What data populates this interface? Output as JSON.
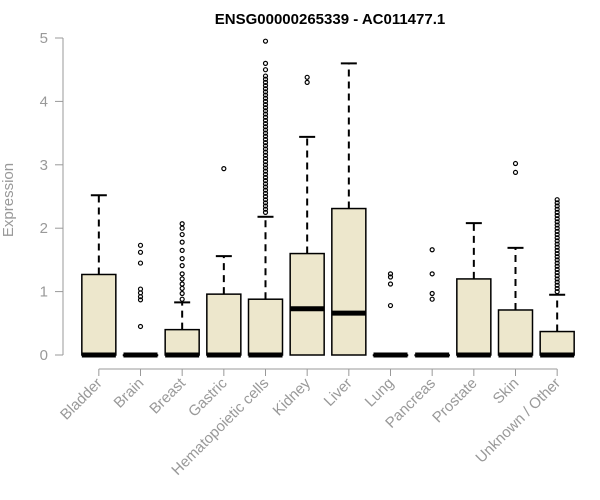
{
  "chart_data": {
    "type": "boxplot",
    "title": "ENSG00000265339 - AC011477.1",
    "ylabel": "Expression",
    "ylim": [
      0,
      5
    ],
    "yticks": [
      0,
      1,
      2,
      3,
      4,
      5
    ],
    "box_color": "#ede7cc",
    "categories": [
      "Bladder",
      "Brain",
      "Breast",
      "Gastric",
      "Hematopoietic cells",
      "Kidney",
      "Liver",
      "Lung",
      "Pancreas",
      "Prostate",
      "Skin",
      "Unknown / Other"
    ],
    "boxes": [
      {
        "q1": 0,
        "median": 0,
        "q3": 1.27,
        "whisker_low": 0,
        "whisker_high": 2.52,
        "outliers": []
      },
      {
        "q1": 0,
        "median": 0,
        "q3": 0,
        "whisker_low": 0,
        "whisker_high": 0,
        "outliers": [
          0.45,
          0.87,
          0.92,
          0.98,
          1.04,
          1.45,
          1.62,
          1.73
        ]
      },
      {
        "q1": 0,
        "median": 0,
        "q3": 0.4,
        "whisker_low": 0,
        "whisker_high": 0.83,
        "outliers": [
          0.88,
          0.97,
          1.05,
          1.12,
          1.2,
          1.28,
          1.41,
          1.52,
          1.65,
          1.78,
          1.9,
          2.0,
          2.07
        ]
      },
      {
        "q1": 0,
        "median": 0,
        "q3": 0.96,
        "whisker_low": 0,
        "whisker_high": 1.56,
        "outliers": [
          2.94
        ]
      },
      {
        "q1": 0,
        "median": 0,
        "q3": 0.88,
        "whisker_low": 0,
        "whisker_high": 2.18,
        "outliers": [
          2.25,
          2.3,
          2.35,
          2.4,
          2.45,
          2.5,
          2.55,
          2.6,
          2.65,
          2.7,
          2.75,
          2.8,
          2.85,
          2.9,
          2.95,
          3.0,
          3.05,
          3.1,
          3.15,
          3.2,
          3.25,
          3.3,
          3.35,
          3.4,
          3.45,
          3.5,
          3.55,
          3.6,
          3.65,
          3.7,
          3.75,
          3.8,
          3.85,
          3.9,
          3.95,
          4.0,
          4.05,
          4.1,
          4.15,
          4.2,
          4.25,
          4.3,
          4.35,
          4.4,
          4.5,
          4.6,
          4.95
        ]
      },
      {
        "q1": 0,
        "median": 0.73,
        "q3": 1.6,
        "whisker_low": 0,
        "whisker_high": 3.44,
        "outliers": [
          4.3,
          4.38
        ]
      },
      {
        "q1": 0,
        "median": 0.66,
        "q3": 2.31,
        "whisker_low": 0,
        "whisker_high": 4.6,
        "outliers": []
      },
      {
        "q1": 0,
        "median": 0,
        "q3": 0,
        "whisker_low": 0,
        "whisker_high": 0,
        "outliers": [
          0.78,
          1.12,
          1.23,
          1.28
        ]
      },
      {
        "q1": 0,
        "median": 0,
        "q3": 0,
        "whisker_low": 0,
        "whisker_high": 0,
        "outliers": [
          0.88,
          0.97,
          1.28,
          1.66
        ]
      },
      {
        "q1": 0,
        "median": 0,
        "q3": 1.2,
        "whisker_low": 0,
        "whisker_high": 2.08,
        "outliers": []
      },
      {
        "q1": 0,
        "median": 0,
        "q3": 0.71,
        "whisker_low": 0,
        "whisker_high": 1.69,
        "outliers": [
          2.88,
          3.02
        ]
      },
      {
        "q1": 0,
        "median": 0,
        "q3": 0.37,
        "whisker_low": 0,
        "whisker_high": 0.95,
        "outliers": [
          1.0,
          1.05,
          1.1,
          1.15,
          1.2,
          1.25,
          1.3,
          1.35,
          1.4,
          1.45,
          1.5,
          1.55,
          1.6,
          1.65,
          1.7,
          1.75,
          1.8,
          1.85,
          1.9,
          1.95,
          2.0,
          2.05,
          2.1,
          2.15,
          2.2,
          2.25,
          2.3,
          2.35,
          2.4,
          2.45
        ]
      }
    ]
  }
}
